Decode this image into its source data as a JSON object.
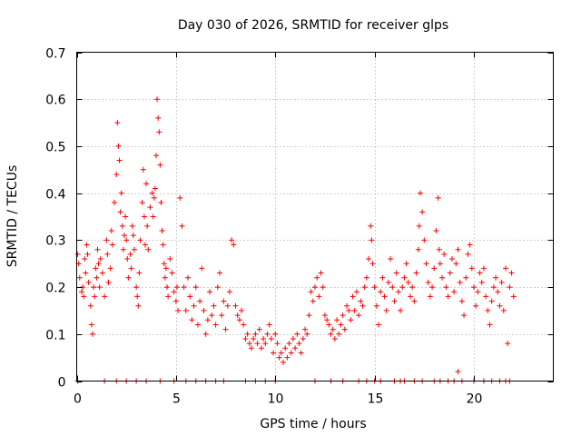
{
  "chart_data": {
    "type": "scatter",
    "title": "Day 030 of 2026, SRMTID for receiver glps",
    "xlabel": "GPS time / hours",
    "ylabel": "SRMTID / TECUs",
    "xlim": [
      0,
      24
    ],
    "ylim": [
      0,
      0.7
    ],
    "xticks": [
      0,
      5,
      10,
      15,
      20
    ],
    "xtick_labels": [
      "0",
      "5",
      "10",
      "15",
      "20"
    ],
    "yticks": [
      0,
      0.1,
      0.2,
      0.3,
      0.4,
      0.5,
      0.6,
      0.7
    ],
    "ytick_labels": [
      "0",
      "0.1",
      "0.2",
      "0.3",
      "0.4",
      "0.5",
      "0.6",
      "0.7"
    ],
    "grid": true,
    "marker": "+",
    "marker_color": "#ff0000",
    "series": [
      {
        "name": "SRMTID",
        "x": [
          0.05,
          0.1,
          0.15,
          0.25,
          0.3,
          0.35,
          0.4,
          0.45,
          0.5,
          0.55,
          0.6,
          0.7,
          0.75,
          0.8,
          0.85,
          0.9,
          0.95,
          1.0,
          1.05,
          1.1,
          1.15,
          1.2,
          1.3,
          1.4,
          1.5,
          1.55,
          1.6,
          1.7,
          1.75,
          1.8,
          1.9,
          2.0,
          2.05,
          2.1,
          2.15,
          2.2,
          2.25,
          2.3,
          2.35,
          2.4,
          2.45,
          2.5,
          2.55,
          2.6,
          2.7,
          2.75,
          2.8,
          2.85,
          2.9,
          3.0,
          3.05,
          3.1,
          3.15,
          3.2,
          3.3,
          3.35,
          3.4,
          3.45,
          3.5,
          3.55,
          3.6,
          3.7,
          3.8,
          3.85,
          3.9,
          3.95,
          4.0,
          4.05,
          4.1,
          4.15,
          4.2,
          4.25,
          4.3,
          4.35,
          4.4,
          4.45,
          4.5,
          4.55,
          4.6,
          4.7,
          4.8,
          4.9,
          5.0,
          5.05,
          5.1,
          5.2,
          5.3,
          5.4,
          5.5,
          5.6,
          5.7,
          5.8,
          5.9,
          6.0,
          6.1,
          6.2,
          6.3,
          6.4,
          6.5,
          6.6,
          6.7,
          6.8,
          6.9,
          7.0,
          7.1,
          7.2,
          7.3,
          7.4,
          7.5,
          7.6,
          7.7,
          7.8,
          7.9,
          8.0,
          8.1,
          8.2,
          8.3,
          8.4,
          8.5,
          8.6,
          8.7,
          8.8,
          8.9,
          9.0,
          9.1,
          9.2,
          9.3,
          9.4,
          9.5,
          9.6,
          9.7,
          9.8,
          9.9,
          10.0,
          10.1,
          10.2,
          10.3,
          10.4,
          10.5,
          10.6,
          10.7,
          10.8,
          10.9,
          11.0,
          11.1,
          11.2,
          11.3,
          11.4,
          11.5,
          11.6,
          11.7,
          11.8,
          11.9,
          12.0,
          12.1,
          12.2,
          12.3,
          12.4,
          12.5,
          12.6,
          12.7,
          12.8,
          12.9,
          13.0,
          13.1,
          13.2,
          13.3,
          13.4,
          13.5,
          13.6,
          13.7,
          13.8,
          13.9,
          14.0,
          14.1,
          14.2,
          14.3,
          14.4,
          14.5,
          14.6,
          14.7,
          14.8,
          14.85,
          14.9,
          15.0,
          15.1,
          15.2,
          15.3,
          15.4,
          15.5,
          15.6,
          15.7,
          15.8,
          15.9,
          16.0,
          16.1,
          16.2,
          16.3,
          16.4,
          16.5,
          16.6,
          16.7,
          16.8,
          16.9,
          17.0,
          17.1,
          17.2,
          17.25,
          17.3,
          17.4,
          17.5,
          17.6,
          17.7,
          17.8,
          17.9,
          18.0,
          18.1,
          18.2,
          18.25,
          18.3,
          18.4,
          18.5,
          18.6,
          18.7,
          18.8,
          18.9,
          19.0,
          19.1,
          19.2,
          19.3,
          19.4,
          19.5,
          19.6,
          19.7,
          19.8,
          19.9,
          20.0,
          20.1,
          20.2,
          20.3,
          20.4,
          20.5,
          20.6,
          20.7,
          20.8,
          20.9,
          21.0,
          21.1,
          21.2,
          21.3,
          21.4,
          21.5,
          21.6,
          21.7,
          21.8,
          21.9,
          22.0,
          0.05,
          1.4,
          2.0,
          2.5,
          3.0,
          3.5,
          4.2,
          4.9,
          5.5,
          6.0,
          6.5,
          7.0,
          7.4,
          8.5,
          9.0,
          9.5,
          10.0,
          12.0,
          12.8,
          13.4,
          14.2,
          14.6,
          15.0,
          15.3,
          16.0,
          16.3,
          16.5,
          17.0,
          17.4,
          18.0,
          18.3,
          18.7,
          19.0,
          19.4,
          20.0,
          20.5,
          20.9,
          21.3,
          21.6,
          21.8,
          19.2
        ],
        "y": [
          0.27,
          0.25,
          0.22,
          0.19,
          0.2,
          0.18,
          0.26,
          0.23,
          0.29,
          0.27,
          0.21,
          0.16,
          0.12,
          0.1,
          0.2,
          0.18,
          0.24,
          0.22,
          0.28,
          0.25,
          0.2,
          0.26,
          0.23,
          0.18,
          0.3,
          0.27,
          0.21,
          0.24,
          0.32,
          0.29,
          0.38,
          0.44,
          0.55,
          0.5,
          0.47,
          0.36,
          0.4,
          0.33,
          0.28,
          0.31,
          0.35,
          0.3,
          0.26,
          0.22,
          0.27,
          0.24,
          0.33,
          0.31,
          0.28,
          0.2,
          0.18,
          0.16,
          0.23,
          0.3,
          0.38,
          0.45,
          0.35,
          0.29,
          0.42,
          0.33,
          0.28,
          0.37,
          0.4,
          0.35,
          0.39,
          0.41,
          0.48,
          0.6,
          0.56,
          0.53,
          0.46,
          0.38,
          0.32,
          0.29,
          0.25,
          0.22,
          0.24,
          0.2,
          0.18,
          0.26,
          0.23,
          0.19,
          0.17,
          0.2,
          0.15,
          0.39,
          0.33,
          0.2,
          0.15,
          0.22,
          0.18,
          0.13,
          0.16,
          0.2,
          0.12,
          0.17,
          0.24,
          0.15,
          0.1,
          0.13,
          0.19,
          0.14,
          0.16,
          0.12,
          0.2,
          0.23,
          0.14,
          0.17,
          0.11,
          0.16,
          0.19,
          0.3,
          0.29,
          0.16,
          0.14,
          0.13,
          0.15,
          0.12,
          0.09,
          0.1,
          0.08,
          0.07,
          0.09,
          0.1,
          0.08,
          0.11,
          0.07,
          0.09,
          0.08,
          0.1,
          0.12,
          0.09,
          0.06,
          0.1,
          0.08,
          0.05,
          0.06,
          0.04,
          0.07,
          0.05,
          0.08,
          0.06,
          0.09,
          0.07,
          0.1,
          0.08,
          0.06,
          0.09,
          0.11,
          0.1,
          0.14,
          0.19,
          0.17,
          0.2,
          0.22,
          0.18,
          0.23,
          0.2,
          0.14,
          0.13,
          0.12,
          0.1,
          0.11,
          0.09,
          0.13,
          0.1,
          0.12,
          0.14,
          0.11,
          0.16,
          0.15,
          0.13,
          0.18,
          0.15,
          0.19,
          0.14,
          0.17,
          0.16,
          0.2,
          0.22,
          0.26,
          0.33,
          0.3,
          0.25,
          0.2,
          0.16,
          0.12,
          0.19,
          0.22,
          0.18,
          0.15,
          0.21,
          0.26,
          0.2,
          0.17,
          0.23,
          0.19,
          0.15,
          0.2,
          0.22,
          0.25,
          0.21,
          0.18,
          0.2,
          0.17,
          0.23,
          0.28,
          0.33,
          0.4,
          0.36,
          0.3,
          0.25,
          0.21,
          0.18,
          0.2,
          0.24,
          0.32,
          0.39,
          0.28,
          0.25,
          0.22,
          0.27,
          0.2,
          0.18,
          0.23,
          0.26,
          0.19,
          0.25,
          0.28,
          0.21,
          0.17,
          0.14,
          0.22,
          0.27,
          0.29,
          0.24,
          0.2,
          0.16,
          0.19,
          0.23,
          0.21,
          0.24,
          0.18,
          0.15,
          0.12,
          0.17,
          0.2,
          0.22,
          0.19,
          0.16,
          0.21,
          0.15,
          0.24,
          0.08,
          0.2,
          0.23,
          0.18,
          0.0,
          0.0,
          0.0,
          0.0,
          0.0,
          0.0,
          0.0,
          0.0,
          0.0,
          0.0,
          0.0,
          0.0,
          0.0,
          0.0,
          0.0,
          0.0,
          0.0,
          0.0,
          0.0,
          0.0,
          0.0,
          0.0,
          0.0,
          0.0,
          0.0,
          0.0,
          0.0,
          0.0,
          0.0,
          0.0,
          0.0,
          0.0,
          0.0,
          0.0,
          0.0,
          0.0,
          0.0,
          0.0,
          0.0,
          0.0,
          0.02
        ]
      }
    ]
  }
}
